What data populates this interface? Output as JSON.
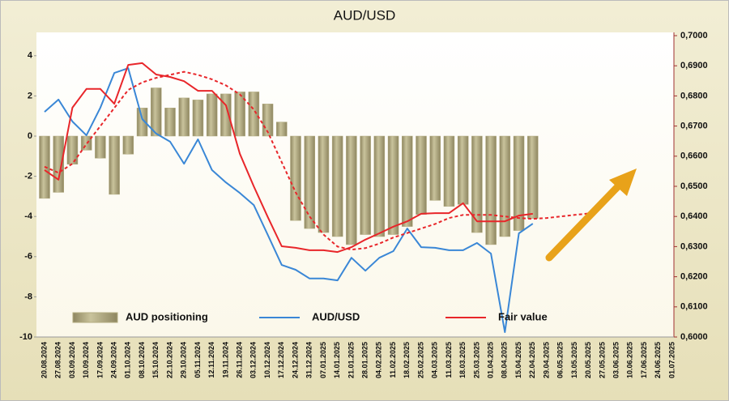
{
  "chart_data": {
    "type": "combo",
    "title": "AUD/USD",
    "categories": [
      "20.08.2024",
      "27.08.2024",
      "03.09.2024",
      "10.09.2024",
      "17.09.2024",
      "24.09.2024",
      "01.10.2024",
      "08.10.2024",
      "15.10.2024",
      "22.10.2024",
      "29.10.2024",
      "05.11.2024",
      "12.11.2024",
      "19.11.2024",
      "26.11.2024",
      "03.12.2024",
      "10.12.2024",
      "17.12.2024",
      "24.12.2024",
      "31.12.2024",
      "07.01.2025",
      "14.01.2025",
      "21.01.2025",
      "28.01.2025",
      "04.02.2025",
      "11.02.2025",
      "18.02.2025",
      "25.02.2025",
      "04.03.2025",
      "11.03.2025",
      "18.03.2025",
      "25.03.2025",
      "01.04.2025",
      "08.04.2025",
      "15.04.2025",
      "22.04.2025",
      "29.04.2025",
      "06.05.2025",
      "13.05.2025",
      "20.05.2025",
      "27.05.2025",
      "03.06.2025",
      "10.06.2025",
      "17.06.2025",
      "24.06.2025",
      "01.07.2025"
    ],
    "ylim": [
      -10,
      5
    ],
    "yticks": [
      4,
      2,
      0,
      -2,
      -4,
      -6,
      -8,
      -10
    ],
    "y2lim": [
      0.6,
      0.7
    ],
    "y2ticks": [
      {
        "value": 0.7,
        "label": "0,7000"
      },
      {
        "value": 0.69,
        "label": "0,6900"
      },
      {
        "value": 0.68,
        "label": "0,6800"
      },
      {
        "value": 0.67,
        "label": "0,6700"
      },
      {
        "value": 0.66,
        "label": "0,6600"
      },
      {
        "value": 0.65,
        "label": "0,6500"
      },
      {
        "value": 0.64,
        "label": "0,6400"
      },
      {
        "value": 0.63,
        "label": "0,6300"
      },
      {
        "value": 0.62,
        "label": "0,6200"
      },
      {
        "value": 0.61,
        "label": "0,6100"
      },
      {
        "value": 0.6,
        "label": "0,6000"
      }
    ],
    "series": [
      {
        "name": "AUD positioning",
        "type": "bar",
        "color": "#b3ac80",
        "axis": "y",
        "values": [
          -3.1,
          -2.8,
          -1.4,
          -0.7,
          -1.1,
          -2.9,
          -0.9,
          1.4,
          2.4,
          1.4,
          1.9,
          1.8,
          2.1,
          2.1,
          2.2,
          2.2,
          1.6,
          0.7,
          -4.2,
          -4.6,
          -4.8,
          -5.0,
          -5.4,
          -4.9,
          -5.0,
          -4.9,
          -4.5,
          -3.9,
          -3.2,
          -3.5,
          -3.4,
          -4.8,
          -5.4,
          -5.0,
          -4.7,
          -4.1,
          null,
          null,
          null,
          null,
          null,
          null,
          null,
          null,
          null,
          null
        ]
      },
      {
        "name": "AUD/USD",
        "type": "line",
        "color": "#3a87d6",
        "axis": "y2",
        "values": [
          0.6747,
          0.6788,
          0.6715,
          0.6669,
          0.6761,
          0.6876,
          0.6892,
          0.6723,
          0.6675,
          0.6648,
          0.6575,
          0.6656,
          0.6554,
          0.6513,
          0.6478,
          0.6438,
          0.6339,
          0.6239,
          0.6223,
          0.6194,
          0.6194,
          0.6188,
          0.6263,
          0.622,
          0.6263,
          0.6285,
          0.636,
          0.6298,
          0.6296,
          0.6288,
          0.6288,
          0.6312,
          0.6277,
          0.6016,
          0.6344,
          0.6376,
          null,
          null,
          null,
          null,
          null,
          null,
          null,
          null,
          null,
          null
        ]
      },
      {
        "name": "Fair value",
        "type": "line",
        "color": "#e8262a",
        "axis": "y2",
        "values": [
          0.6554,
          0.6522,
          0.6761,
          0.6823,
          0.6823,
          0.6774,
          0.6903,
          0.6909,
          0.6871,
          0.6863,
          0.6849,
          0.6817,
          0.6817,
          0.6769,
          0.6608,
          0.65,
          0.6398,
          0.6301,
          0.6296,
          0.6288,
          0.6288,
          0.6282,
          0.6298,
          0.6323,
          0.6344,
          0.6366,
          0.6384,
          0.6409,
          0.6411,
          0.6411,
          0.6444,
          0.6384,
          0.6384,
          0.6384,
          0.6403,
          0.6409,
          null,
          null,
          null,
          null,
          null,
          null,
          null,
          null,
          null,
          null
        ]
      },
      {
        "type": "line",
        "dashed": true,
        "color": "#e8262a",
        "axis": "y2",
        "values": [
          0.6565,
          0.6545,
          0.6575,
          0.664,
          0.67,
          0.676,
          0.682,
          0.6845,
          0.686,
          0.687,
          0.688,
          0.687,
          0.6855,
          0.6835,
          0.6805,
          0.6755,
          0.668,
          0.658,
          0.648,
          0.64,
          0.634,
          0.63,
          0.629,
          0.6295,
          0.631,
          0.633,
          0.6345,
          0.636,
          0.6375,
          0.6395,
          0.6405,
          0.6405,
          0.6405,
          0.64,
          0.6395,
          0.6392,
          0.6395,
          0.64,
          0.6405,
          0.641,
          null,
          null,
          null,
          null,
          null,
          null
        ]
      }
    ]
  }
}
